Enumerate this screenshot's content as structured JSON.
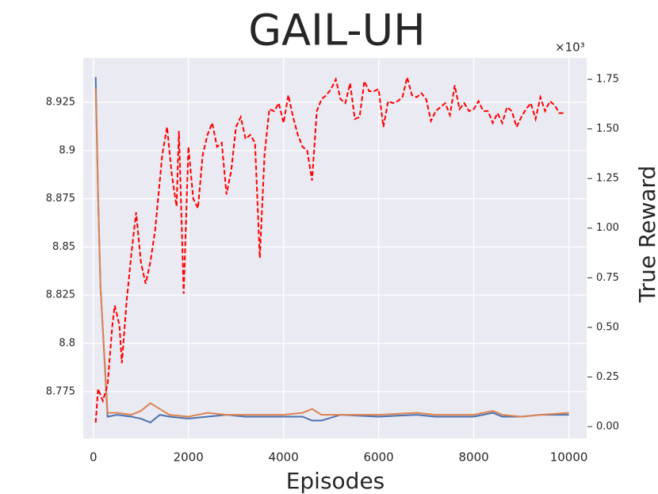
{
  "chart_data": {
    "type": "line",
    "title": "GAIL-UH",
    "x_label": "Episodes",
    "y2_label": "True Reward",
    "y2_multiplier_label": "×10³",
    "xlim": [
      -212,
      10374
    ],
    "xticks": [
      0,
      2000,
      4000,
      6000,
      8000,
      10000
    ],
    "ylim": [
      8.7507,
      8.948
    ],
    "yticks": [
      8.775,
      8.8,
      8.825,
      8.85,
      8.875,
      8.9,
      8.925
    ],
    "y2lim": [
      -0.06,
      1.858
    ],
    "y2ticks": [
      {
        "value": 0,
        "label": "0.00"
      },
      {
        "value": 0.25,
        "label": "0.25"
      },
      {
        "value": 0.5,
        "label": "0.50"
      },
      {
        "value": 0.75,
        "label": "0.75"
      },
      {
        "value": 1,
        "label": "1.00"
      },
      {
        "value": 1.25,
        "label": "1.25"
      },
      {
        "value": 1.5,
        "label": "1.50"
      },
      {
        "value": 1.75,
        "label": "1.75"
      }
    ],
    "grid": true,
    "series": [
      {
        "color": "#4c72b0",
        "dash": "solid",
        "x": [
          50,
          100,
          150,
          300,
          500,
          800,
          1000,
          1200,
          1400,
          1600,
          2000,
          2400,
          2800,
          3200,
          3600,
          4000,
          4400,
          4600,
          4800,
          5200,
          6000,
          6800,
          7200,
          8000,
          8400,
          8600,
          9000,
          9400,
          10000
        ],
        "values": [
          8.938,
          8.877,
          8.83,
          8.762,
          8.763,
          8.762,
          8.761,
          8.759,
          8.763,
          8.762,
          8.761,
          8.762,
          8.763,
          8.762,
          8.762,
          8.762,
          8.762,
          8.76,
          8.76,
          8.763,
          8.762,
          8.763,
          8.762,
          8.762,
          8.764,
          8.762,
          8.762,
          8.763,
          8.763
        ]
      },
      {
        "color": "#dd8452",
        "dash": "solid",
        "x": [
          50,
          100,
          150,
          300,
          500,
          800,
          1000,
          1200,
          1400,
          1600,
          2000,
          2400,
          2800,
          3200,
          3600,
          4000,
          4400,
          4600,
          4800,
          5200,
          6000,
          6800,
          7200,
          8000,
          8400,
          8600,
          9000,
          9400,
          10000
        ],
        "values": [
          8.932,
          8.877,
          8.83,
          8.764,
          8.764,
          8.763,
          8.765,
          8.769,
          8.766,
          8.763,
          8.762,
          8.764,
          8.763,
          8.763,
          8.763,
          8.763,
          8.764,
          8.766,
          8.763,
          8.763,
          8.763,
          8.764,
          8.763,
          8.763,
          8.765,
          8.763,
          8.762,
          8.763,
          8.764
        ]
      },
      {
        "color": "#ff0000",
        "dash": "dashed",
        "axis": "y2",
        "x": [
          50,
          100,
          200,
          300,
          400,
          450,
          550,
          600,
          700,
          800,
          900,
          1000,
          1100,
          1200,
          1300,
          1450,
          1550,
          1650,
          1750,
          1800,
          1900,
          2000,
          2100,
          2200,
          2300,
          2400,
          2500,
          2600,
          2700,
          2800,
          2900,
          3000,
          3100,
          3200,
          3300,
          3400,
          3500,
          3600,
          3700,
          3800,
          3900,
          4000,
          4100,
          4200,
          4300,
          4400,
          4500,
          4600,
          4700,
          4800,
          4900,
          5000,
          5100,
          5200,
          5300,
          5400,
          5500,
          5600,
          5700,
          5800,
          5900,
          6000,
          6100,
          6200,
          6300,
          6400,
          6500,
          6600,
          6700,
          6800,
          6900,
          7000,
          7100,
          7200,
          7300,
          7400,
          7500,
          7600,
          7700,
          7800,
          7900,
          8000,
          8100,
          8200,
          8300,
          8400,
          8500,
          8600,
          8700,
          8800,
          8900,
          9000,
          9100,
          9200,
          9300,
          9400,
          9500,
          9600,
          9700,
          9800,
          9900
        ],
        "values": [
          0.02,
          0.19,
          0.13,
          0.21,
          0.51,
          0.61,
          0.51,
          0.32,
          0.63,
          0.87,
          1.08,
          0.83,
          0.72,
          0.83,
          0.99,
          1.37,
          1.51,
          1.27,
          1.11,
          1.49,
          0.67,
          1.41,
          1.15,
          1.1,
          1.37,
          1.47,
          1.53,
          1.41,
          1.43,
          1.17,
          1.29,
          1.51,
          1.56,
          1.45,
          1.47,
          1.43,
          0.85,
          1.37,
          1.6,
          1.59,
          1.63,
          1.53,
          1.67,
          1.56,
          1.47,
          1.41,
          1.39,
          1.24,
          1.59,
          1.65,
          1.67,
          1.7,
          1.75,
          1.65,
          1.63,
          1.73,
          1.55,
          1.56,
          1.74,
          1.69,
          1.69,
          1.7,
          1.51,
          1.64,
          1.63,
          1.64,
          1.66,
          1.76,
          1.67,
          1.66,
          1.68,
          1.65,
          1.54,
          1.59,
          1.61,
          1.63,
          1.57,
          1.72,
          1.6,
          1.63,
          1.59,
          1.6,
          1.64,
          1.59,
          1.59,
          1.53,
          1.58,
          1.53,
          1.61,
          1.59,
          1.51,
          1.56,
          1.6,
          1.63,
          1.55,
          1.66,
          1.59,
          1.64,
          1.62,
          1.58,
          1.58
        ]
      }
    ]
  }
}
